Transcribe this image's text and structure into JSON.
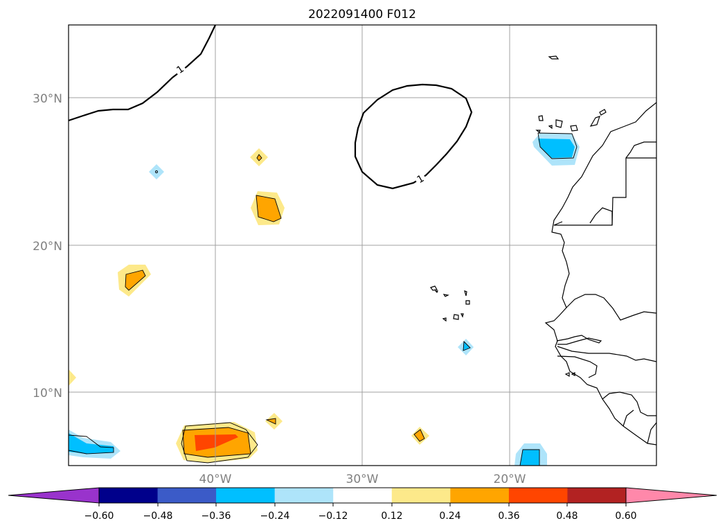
{
  "title": "2022091400 F012",
  "map": {
    "lat_labels": [
      "30°N",
      "20°N",
      "10°N"
    ],
    "lon_labels": [
      "40°W",
      "30°W",
      "20°W"
    ],
    "contour_labels": [
      "1",
      "1"
    ]
  },
  "colorbar": {
    "tick_labels": [
      "−0.60",
      "−0.48",
      "−0.36",
      "−0.24",
      "−0.12",
      "0.12",
      "0.24",
      "0.36",
      "0.48",
      "0.60"
    ],
    "extend_low_color": "#9933cc",
    "extend_high_color": "#ff88aa",
    "colors": [
      "#00008b",
      "#3b5bc8",
      "#00bfff",
      "#aee4fa",
      "#ffffff",
      "#fde98a",
      "#ffa500",
      "#ff4500",
      "#b22222"
    ]
  },
  "fill_colors": {
    "light_blue": "#aee4fa",
    "blue": "#00bfff",
    "light_yellow": "#fde98a",
    "orange": "#ffa500",
    "red_orange": "#ff4500"
  }
}
